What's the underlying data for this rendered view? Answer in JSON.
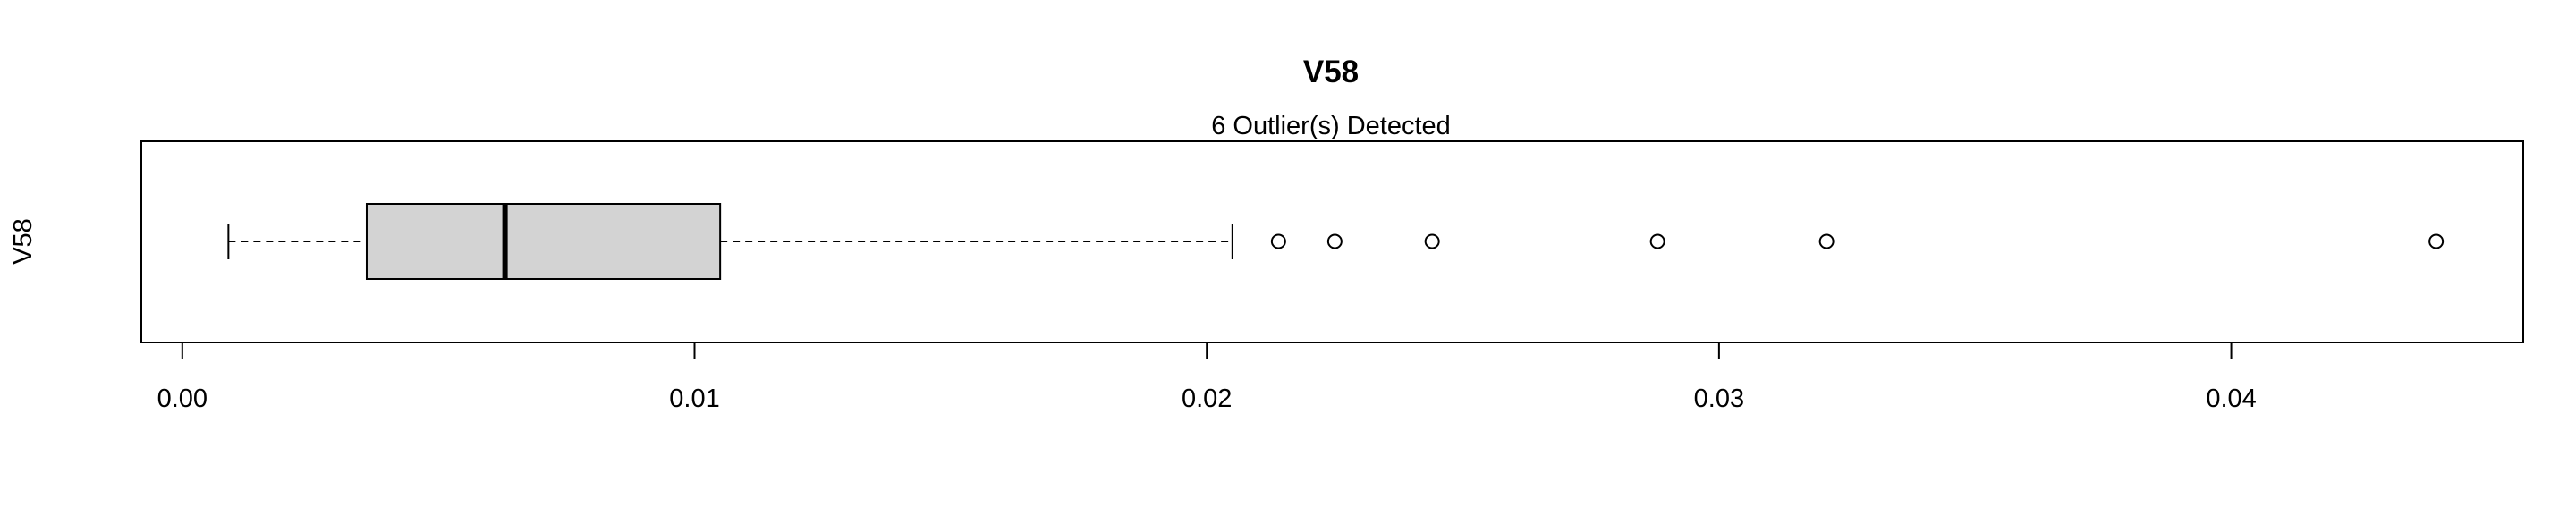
{
  "chart_data": {
    "type": "boxplot",
    "orientation": "horizontal",
    "title": "V58",
    "subtitle": "6 Outlier(s) Detected",
    "ylabel": "V58",
    "xlim": [
      -0.0008,
      0.0457
    ],
    "xticks": [
      0.0,
      0.01,
      0.02,
      0.03,
      0.04
    ],
    "xtick_labels": [
      "0.00",
      "0.01",
      "0.02",
      "0.03",
      "0.04"
    ],
    "box": {
      "whisker_low": 0.0009,
      "q1": 0.0036,
      "median": 0.0063,
      "q3": 0.0105,
      "whisker_high": 0.0205
    },
    "outliers": [
      0.0214,
      0.0225,
      0.0244,
      0.0288,
      0.0321,
      0.044
    ],
    "box_fill": "#d3d3d3",
    "grid": false
  }
}
